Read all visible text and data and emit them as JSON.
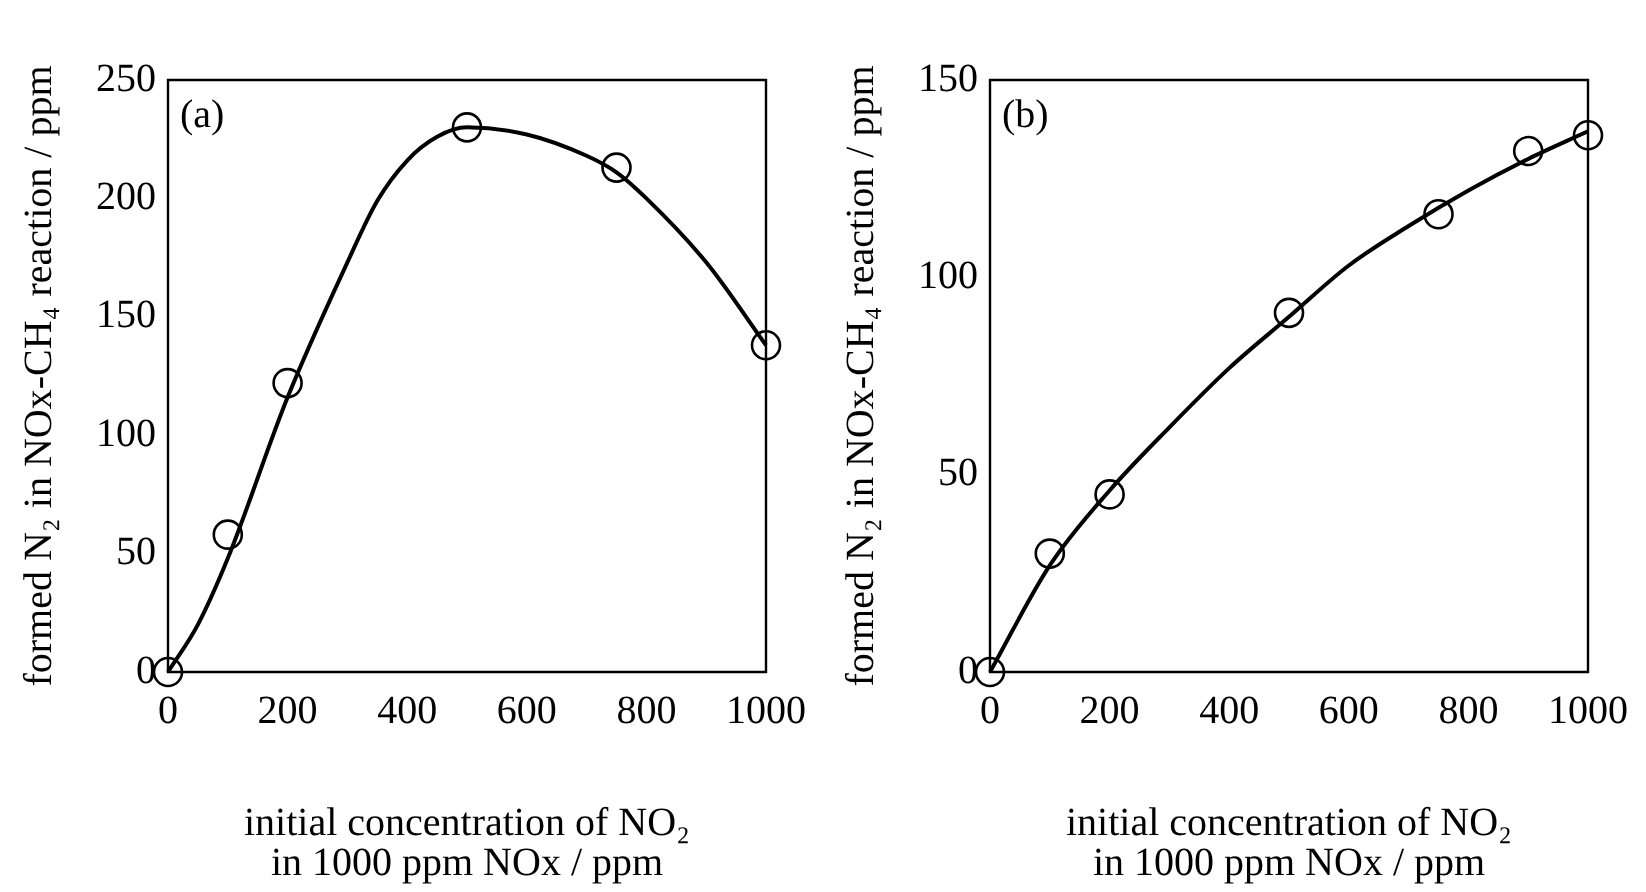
{
  "chart_data": [
    {
      "type": "scatter",
      "xlabel": "initial concentration of NO₂\nin 1000 ppm NOx / ppm",
      "ylabel": "formed N₂ in NOx-CH₄ reaction / ppm",
      "annotations": [
        "(a)"
      ],
      "xlim": [
        0,
        1000
      ],
      "xticks": [
        0,
        200,
        400,
        600,
        800,
        1000
      ],
      "ylim": [
        0,
        250
      ],
      "yticks": [
        0,
        50,
        100,
        150,
        200,
        250
      ],
      "legend": false,
      "grid": false,
      "series": [
        {
          "marker": "circle",
          "color": "#000000",
          "x": [
            0,
            100,
            200,
            500,
            750,
            1000
          ],
          "values": [
            0,
            58,
            122,
            230,
            213,
            138
          ]
        },
        {
          "type": "line",
          "marker": "none",
          "color": "#000000",
          "x": [
            0,
            50,
            100,
            200,
            300,
            350,
            400,
            450,
            500,
            600,
            700,
            750,
            800,
            900,
            1000
          ],
          "values": [
            0,
            20,
            48,
            116,
            173,
            199,
            216,
            226,
            230,
            227,
            218,
            211,
            200,
            173,
            138
          ]
        }
      ]
    },
    {
      "type": "scatter",
      "xlabel": "initial concentration of NO₂\nin 1000 ppm NOx / ppm",
      "ylabel": "formed N₂ in NOx-CH₄ reaction / ppm",
      "annotations": [
        "(b)"
      ],
      "xlim": [
        0,
        1000
      ],
      "xticks": [
        0,
        200,
        400,
        600,
        800,
        1000
      ],
      "ylim": [
        0,
        150
      ],
      "yticks": [
        0,
        50,
        100,
        150
      ],
      "legend": false,
      "grid": false,
      "series": [
        {
          "marker": "circle",
          "color": "#000000",
          "x": [
            0,
            100,
            200,
            500,
            750,
            900,
            1000
          ],
          "values": [
            0,
            30,
            45,
            91,
            116,
            132,
            136
          ]
        },
        {
          "type": "line",
          "marker": "none",
          "color": "#000000",
          "x": [
            0,
            100,
            200,
            300,
            400,
            500,
            600,
            700,
            800,
            900,
            1000
          ],
          "values": [
            0,
            27,
            46,
            62,
            77,
            90,
            103,
            113,
            122,
            130,
            137
          ]
        }
      ]
    }
  ]
}
